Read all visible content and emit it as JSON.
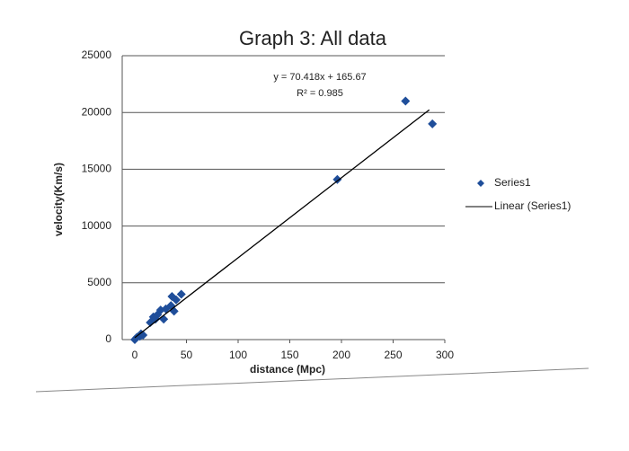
{
  "chart_data": {
    "type": "scatter",
    "title": "Graph 3: All data",
    "x_label": "distance (Mpc)",
    "y_label": "velocity(Km/s)",
    "annotations": [
      "y = 70.418x + 165.67",
      "R² = 0.985"
    ],
    "xlim": [
      0,
      300
    ],
    "xticks": [
      0,
      50,
      100,
      150,
      200,
      250,
      300
    ],
    "ylim": [
      0,
      25000
    ],
    "yticks": [
      0,
      5000,
      10000,
      15000,
      20000,
      25000
    ],
    "grid": true,
    "legend": "right",
    "series": [
      {
        "name": "Series1",
        "color": "#1f4e9a",
        "x": [
          0,
          2,
          5,
          6,
          8,
          15,
          18,
          20,
          22,
          25,
          28,
          30,
          35,
          36,
          38,
          40,
          45,
          196,
          262,
          288
        ],
        "values": [
          0,
          200,
          300,
          500,
          400,
          1500,
          2000,
          1800,
          2200,
          2600,
          1800,
          2700,
          3000,
          3800,
          2500,
          3500,
          4000,
          14100,
          21000,
          19000
        ]
      }
    ],
    "trendline": {
      "name": "Linear (Series1)",
      "color": "#000000",
      "x": [
        0,
        285
      ],
      "values": [
        166,
        20235
      ]
    }
  }
}
